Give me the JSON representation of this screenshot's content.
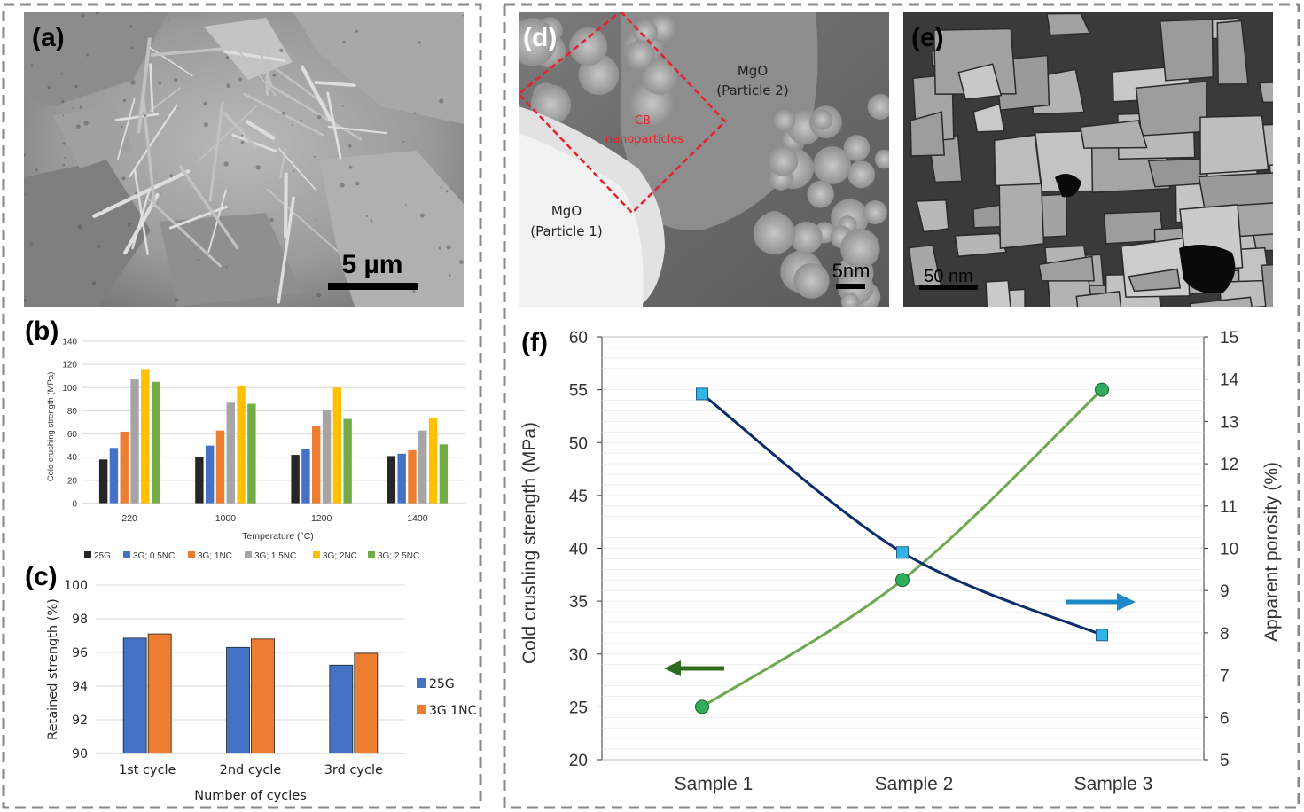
{
  "figure": {
    "colors": {
      "frame_dash": "#888888",
      "c25G": "#262626",
      "c05NC": "#4472C4",
      "c1NC": "#ED7D31",
      "c15NC": "#A5A5A5",
      "c2NC": "#FFC000",
      "c25NC": "#70AD47",
      "ccs_line": "#6CA84F",
      "ccs_marker": "#2EAE5C",
      "por_line": "#0B2D6B",
      "por_marker": "#33B4E8",
      "arrow_green": "#2F6B1E",
      "arrow_blue": "#1E88C8",
      "roi_red": "#E8202A"
    }
  },
  "panel_a": {
    "letter": "(a)",
    "scale_bar": "5 µm",
    "image": "sem-needle-crystals"
  },
  "panel_d": {
    "letter": "(d)",
    "scale_bar": "5nm",
    "label_p2_line1": "MgO",
    "label_p2_line2": "(Particle 2)",
    "label_p1_line1": "MgO",
    "label_p1_line2": "(Particle 1)",
    "label_cb_line1": "CB",
    "label_cb_line2": "nanoparticles",
    "image": "tem-particles"
  },
  "panel_e": {
    "letter": "(e)",
    "scale_bar": "50 nm",
    "image": "sem-fractured-grains"
  },
  "chart_data": [
    {
      "panel": "(b)",
      "type": "bar",
      "xlabel": "Temperature (°C)",
      "ylabel": "Cold crushing strength (MPa)",
      "ylim": [
        0,
        140
      ],
      "yticks": [
        0,
        20,
        40,
        60,
        80,
        100,
        120,
        140
      ],
      "grid": true,
      "legend_position": "bottom",
      "categories": [
        "220",
        "1000",
        "1200",
        "1400"
      ],
      "series": [
        {
          "name": "25G",
          "values": [
            38,
            40,
            42,
            41
          ]
        },
        {
          "name": "3G; 0.5NC",
          "values": [
            48,
            50,
            47,
            43
          ]
        },
        {
          "name": "3G; 1NC",
          "values": [
            62,
            63,
            67,
            46
          ]
        },
        {
          "name": "3G; 1.5NC",
          "values": [
            107,
            87,
            81,
            63
          ]
        },
        {
          "name": "3G; 2NC",
          "values": [
            116,
            101,
            100,
            74
          ]
        },
        {
          "name": "3G; 2.5NC",
          "values": [
            105,
            86,
            73,
            51
          ]
        }
      ]
    },
    {
      "panel": "(c)",
      "type": "bar",
      "xlabel": "Number of cycles",
      "ylabel": "Retained strength (%)",
      "ylim": [
        90,
        100
      ],
      "yticks": [
        90,
        92,
        94,
        96,
        98,
        100
      ],
      "grid": true,
      "legend_position": "right",
      "categories": [
        "1st cycle",
        "2nd cycle",
        "3rd cycle"
      ],
      "series": [
        {
          "name": "25G",
          "values": [
            96.85,
            96.3,
            95.25
          ]
        },
        {
          "name": "3G 1NC",
          "values": [
            97.1,
            96.8,
            95.95
          ]
        }
      ]
    },
    {
      "panel": "(f)",
      "type": "line",
      "categories": [
        "Sample 1",
        "Sample 2",
        "Sample 3"
      ],
      "ylabel": "Cold crushing strength (MPa)",
      "y2label": "Apparent porosity (%)",
      "ylim": [
        20,
        60
      ],
      "yticks": [
        20,
        25,
        30,
        35,
        40,
        45,
        50,
        55,
        60
      ],
      "y2lim": [
        5,
        15
      ],
      "y2ticks": [
        5,
        6,
        7,
        8,
        9,
        10,
        11,
        12,
        13,
        14,
        15
      ],
      "grid": true,
      "series": [
        {
          "axis": "left",
          "marker": "circle",
          "values": [
            25,
            37,
            55
          ]
        },
        {
          "axis": "right",
          "marker": "square",
          "values": [
            13.65,
            9.9,
            7.95
          ]
        }
      ]
    }
  ]
}
